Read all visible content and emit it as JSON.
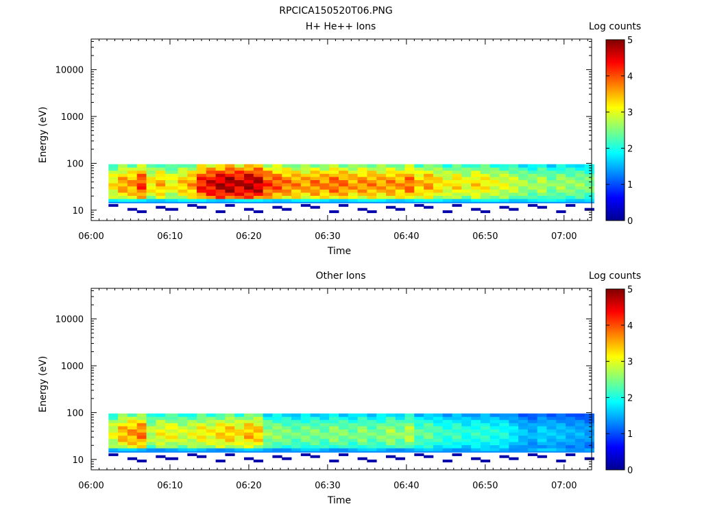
{
  "figure_title": "RPCICA150520T06.PNG",
  "panels": [
    {
      "title": "H+ He++ Ions",
      "ylabel": "Energy (eV)",
      "xlabel": "Time",
      "colorbar_label": "Log counts"
    },
    {
      "title": "Other Ions",
      "ylabel": "Energy (eV)",
      "xlabel": "Time",
      "colorbar_label": "Log counts"
    }
  ],
  "chart_data": [
    {
      "type": "heatmap",
      "title": "H+ He++ Ions",
      "xlabel": "Time",
      "ylabel": "Energy (eV)",
      "x_tick_labels": [
        "06:00",
        "06:10",
        "06:20",
        "06:30",
        "06:40",
        "06:50",
        "07:00"
      ],
      "xlim_minutes": [
        0,
        63.5
      ],
      "y_scale": "log",
      "ylim": [
        6,
        45000
      ],
      "y_tick_labels": [
        "10",
        "100",
        "1000",
        "10000"
      ],
      "colorbar": {
        "label": "Log counts",
        "min": 0,
        "max": 5,
        "tick_labels": [
          "0",
          "1",
          "2",
          "3",
          "4",
          "5"
        ]
      },
      "time_bins_minutes": [
        2.2,
        3.4,
        4.6,
        5.8,
        7.0,
        8.2,
        9.4,
        11.0,
        12.2,
        13.4,
        14.6,
        15.8,
        17.0,
        18.2,
        19.4,
        20.6,
        21.8,
        23.0,
        24.2,
        25.4,
        26.6,
        27.8,
        29.0,
        30.2,
        31.4,
        32.6,
        33.8,
        35.0,
        36.2,
        37.4,
        38.6,
        39.8,
        41.0,
        42.2,
        43.4,
        44.6,
        45.8,
        47.0,
        48.2,
        49.4,
        50.6,
        51.8,
        53.0,
        54.2,
        55.4,
        56.6,
        57.8,
        59.0,
        60.2,
        61.4,
        62.6
      ],
      "energy_range_ev": [
        15,
        96
      ],
      "log_counts_peak_per_bin": [
        3.2,
        3.6,
        3.6,
        4.1,
        3.2,
        3.5,
        3.1,
        3.4,
        3.6,
        4.3,
        4.5,
        4.7,
        4.8,
        4.6,
        4.8,
        4.7,
        4.1,
        4.0,
        3.8,
        3.7,
        3.6,
        3.8,
        3.7,
        3.9,
        3.8,
        3.6,
        3.7,
        3.7,
        3.6,
        3.7,
        3.6,
        3.9,
        3.4,
        3.6,
        3.3,
        3.1,
        3.3,
        3.0,
        3.3,
        3.2,
        3.0,
        3.0,
        2.9,
        2.7,
        2.6,
        2.8,
        2.5,
        2.7,
        2.6,
        2.6,
        2.5
      ],
      "note_low_energy_band_log_counts": 1.8,
      "sparse_low_counts_below_15ev": true
    },
    {
      "type": "heatmap",
      "title": "Other Ions",
      "xlabel": "Time",
      "ylabel": "Energy (eV)",
      "x_tick_labels": [
        "06:00",
        "06:10",
        "06:20",
        "06:30",
        "06:40",
        "06:50",
        "07:00"
      ],
      "xlim_minutes": [
        0,
        63.5
      ],
      "y_scale": "log",
      "ylim": [
        6,
        45000
      ],
      "y_tick_labels": [
        "10",
        "100",
        "1000",
        "10000"
      ],
      "colorbar": {
        "label": "Log counts",
        "min": 0,
        "max": 5,
        "tick_labels": [
          "0",
          "1",
          "2",
          "3",
          "4",
          "5"
        ]
      },
      "time_bins_minutes": [
        2.2,
        3.4,
        4.6,
        5.8,
        7.0,
        8.2,
        9.4,
        11.0,
        12.2,
        13.4,
        14.6,
        15.8,
        17.0,
        18.2,
        19.4,
        20.6,
        21.8,
        23.0,
        24.2,
        25.4,
        26.6,
        27.8,
        29.0,
        30.2,
        31.4,
        32.6,
        33.8,
        35.0,
        36.2,
        37.4,
        38.6,
        39.8,
        41.0,
        42.2,
        43.4,
        44.6,
        45.8,
        47.0,
        48.2,
        49.4,
        50.6,
        51.8,
        53.0,
        54.2,
        55.4,
        56.6,
        57.8,
        59.0,
        60.2,
        61.4,
        62.6
      ],
      "energy_range_ev": [
        15,
        96
      ],
      "log_counts_peak_per_bin": [
        3.0,
        3.5,
        3.6,
        3.8,
        2.8,
        3.1,
        3.1,
        2.9,
        3.0,
        3.2,
        3.1,
        3.3,
        3.4,
        3.2,
        3.5,
        3.4,
        2.6,
        2.6,
        2.5,
        2.4,
        2.5,
        2.5,
        2.4,
        2.6,
        2.5,
        2.4,
        2.6,
        2.4,
        2.5,
        2.7,
        2.5,
        2.8,
        2.3,
        2.4,
        2.2,
        2.1,
        2.2,
        2.0,
        2.1,
        2.1,
        2.0,
        2.0,
        1.8,
        1.6,
        1.5,
        1.7,
        1.6,
        1.6,
        1.5,
        1.5,
        1.4
      ],
      "note_low_energy_band_log_counts": 1.5,
      "sparse_low_counts_below_15ev": true
    }
  ]
}
